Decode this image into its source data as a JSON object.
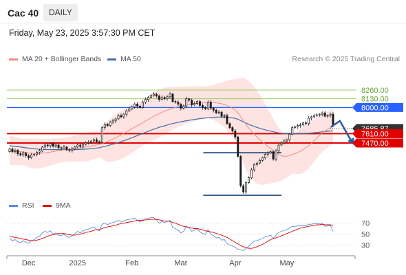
{
  "header": {
    "symbol": "Cac 40",
    "timeframe": "DAILY"
  },
  "datetime": "Friday, May 23, 2025 3:57:30 PM CET",
  "legend": [
    {
      "label": "MA 20 + Bollinger Bands",
      "color": "#f28b82"
    },
    {
      "label": "MA 50",
      "color": "#3d6fa8"
    }
  ],
  "credit": "Research © 2025 Trading Central",
  "rsi_legend": [
    {
      "label": "RSI",
      "color": "#5b8fd6"
    },
    {
      "label": "9MA",
      "color": "#e00000"
    }
  ],
  "colors": {
    "band_fill": "#fde3e1",
    "ma20": "#f28b82",
    "ma50": "#3d6fa8",
    "candle": "#1a1a1a",
    "resistance_green": "#9ccc65",
    "pivot_blue": "#2962ff",
    "support_red": "#e00000",
    "arrow": "#2e5ea8",
    "rsi_line": "#5b8fd6",
    "rsi_ma": "#e00000"
  },
  "chart_data": [
    {
      "type": "candlestick",
      "ylim": [
        6660,
        8630
      ],
      "x_labels": [
        {
          "label": "Dec",
          "index": 7
        },
        {
          "label": "2025",
          "index": 25
        },
        {
          "label": "Feb",
          "index": 45
        },
        {
          "label": "Mar",
          "index": 63
        },
        {
          "label": "Apr",
          "index": 83
        },
        {
          "label": "May",
          "index": 102
        }
      ],
      "close": [
        7380,
        7340,
        7360,
        7310,
        7290,
        7320,
        7280,
        7250,
        7290,
        7300,
        7330,
        7350,
        7410,
        7440,
        7430,
        7460,
        7420,
        7440,
        7400,
        7390,
        7410,
        7370,
        7360,
        7380,
        7410,
        7440,
        7420,
        7450,
        7470,
        7480,
        7500,
        7520,
        7490,
        7480,
        7700,
        7750,
        7730,
        7780,
        7800,
        7830,
        7880,
        7860,
        7900,
        7950,
        7980,
        8010,
        8050,
        8020,
        8000,
        8080,
        8120,
        8150,
        8180,
        8200,
        8170,
        8120,
        8150,
        8130,
        8160,
        8200,
        8090,
        8080,
        8050,
        7990,
        8020,
        8130,
        8110,
        8040,
        8060,
        8090,
        8030,
        8000,
        7980,
        8080,
        7990,
        7960,
        7920,
        7930,
        7870,
        7880,
        7760,
        7700,
        7650,
        7560,
        7270,
        6830,
        6740,
        6880,
        6950,
        7070,
        7150,
        7170,
        7210,
        7250,
        7300,
        7320,
        7340,
        7230,
        7350,
        7440,
        7470,
        7500,
        7520,
        7600,
        7700,
        7710,
        7730,
        7740,
        7770,
        7760,
        7840,
        7860,
        7880,
        7890,
        7900,
        7920,
        7870,
        7880,
        7900,
        7740
      ],
      "open": [
        7340,
        7380,
        7340,
        7360,
        7310,
        7290,
        7320,
        7280,
        7250,
        7290,
        7300,
        7330,
        7350,
        7410,
        7440,
        7430,
        7460,
        7420,
        7440,
        7400,
        7390,
        7410,
        7370,
        7360,
        7380,
        7410,
        7440,
        7420,
        7450,
        7470,
        7480,
        7500,
        7520,
        7490,
        7480,
        7700,
        7750,
        7730,
        7780,
        7800,
        7830,
        7880,
        7860,
        7900,
        7950,
        7980,
        8010,
        8050,
        8020,
        8000,
        8080,
        8120,
        8150,
        8180,
        8200,
        8170,
        8120,
        8150,
        8130,
        8160,
        8200,
        8090,
        8080,
        8050,
        7990,
        8020,
        8130,
        8110,
        8040,
        8060,
        8090,
        8030,
        8000,
        7980,
        8080,
        7990,
        7960,
        7920,
        7930,
        7870,
        7880,
        7760,
        7700,
        7650,
        7560,
        7270,
        6830,
        6740,
        6880,
        6950,
        7070,
        7150,
        7170,
        7210,
        7250,
        7300,
        7320,
        7340,
        7230,
        7350,
        7440,
        7470,
        7500,
        7520,
        7600,
        7700,
        7710,
        7730,
        7740,
        7770,
        7760,
        7840,
        7860,
        7880,
        7890,
        7900,
        7920,
        7870,
        7880,
        7900
      ],
      "ma20": [
        7360,
        7357,
        7352,
        7347,
        7341,
        7335,
        7330,
        7324,
        7317,
        7313,
        7311,
        7312,
        7316,
        7322,
        7328,
        7335,
        7342,
        7350,
        7356,
        7362,
        7368,
        7373,
        7377,
        7382,
        7387,
        7392,
        7397,
        7403,
        7410,
        7418,
        7426,
        7435,
        7442,
        7447,
        7463,
        7479,
        7494,
        7511,
        7529,
        7548,
        7570,
        7590,
        7613,
        7637,
        7660,
        7684,
        7707,
        7729,
        7749,
        7773,
        7799,
        7822,
        7846,
        7869,
        7889,
        7909,
        7928,
        7943,
        7960,
        7976,
        7988,
        8000,
        8011,
        8018,
        8025,
        8035,
        8043,
        8050,
        8056,
        8062,
        8067,
        8070,
        8072,
        8079,
        8078,
        8075,
        8069,
        8064,
        8055,
        8046,
        8028,
        8010,
        7988,
        7961,
        7921,
        7864,
        7804,
        7746,
        7690,
        7642,
        7597,
        7557,
        7521,
        7484,
        7454,
        7420,
        7389,
        7355,
        7321,
        7294,
        7279,
        7273,
        7273,
        7283,
        7298,
        7312,
        7328,
        7346,
        7370,
        7402,
        7429,
        7463,
        7506,
        7542,
        7583,
        7621,
        7647,
        7672,
        7700,
        7716
      ],
      "ma50": [
        7430,
        7425,
        7420,
        7415,
        7410,
        7404,
        7398,
        7393,
        7388,
        7384,
        7380,
        7377,
        7375,
        7374,
        7373,
        7372,
        7372,
        7371,
        7371,
        7370,
        7370,
        7370,
        7370,
        7371,
        7372,
        7373,
        7375,
        7377,
        7379,
        7382,
        7386,
        7390,
        7395,
        7400,
        7410,
        7420,
        7430,
        7441,
        7452,
        7464,
        7477,
        7490,
        7504,
        7518,
        7533,
        7549,
        7565,
        7581,
        7597,
        7613,
        7629,
        7645,
        7661,
        7676,
        7690,
        7704,
        7716,
        7728,
        7739,
        7750,
        7760,
        7770,
        7779,
        7787,
        7794,
        7802,
        7809,
        7816,
        7822,
        7828,
        7834,
        7839,
        7843,
        7848,
        7851,
        7854,
        7856,
        7857,
        7857,
        7856,
        7853,
        7849,
        7844,
        7837,
        7825,
        7806,
        7785,
        7766,
        7748,
        7732,
        7717,
        7703,
        7690,
        7678,
        7667,
        7656,
        7647,
        7637,
        7628,
        7621,
        7616,
        7612,
        7609,
        7607,
        7607,
        7607,
        7607,
        7608,
        7610,
        7612,
        7615,
        7619,
        7623,
        7627,
        7632,
        7637,
        7641,
        7645,
        7649,
        7651
      ],
      "band_width": [
        220,
        215,
        210,
        205,
        200,
        200,
        205,
        215,
        220,
        225,
        225,
        220,
        215,
        210,
        205,
        200,
        195,
        190,
        185,
        180,
        180,
        180,
        185,
        190,
        195,
        200,
        205,
        210,
        215,
        215,
        210,
        205,
        200,
        195,
        230,
        270,
        300,
        320,
        335,
        345,
        355,
        360,
        365,
        365,
        365,
        360,
        355,
        350,
        345,
        340,
        340,
        345,
        350,
        355,
        360,
        360,
        355,
        350,
        340,
        330,
        320,
        310,
        300,
        290,
        280,
        275,
        270,
        265,
        260,
        255,
        250,
        245,
        240,
        240,
        250,
        260,
        280,
        300,
        320,
        340,
        370,
        400,
        430,
        460,
        510,
        580,
        640,
        680,
        700,
        710,
        705,
        690,
        670,
        640,
        600,
        560,
        520,
        480,
        440,
        400,
        370,
        340,
        320,
        300,
        290,
        300,
        320,
        340,
        350,
        350,
        340,
        330,
        310,
        300,
        290,
        280,
        275,
        270,
        265,
        270
      ],
      "levels": [
        {
          "value": 8260,
          "label": "8260.00"
        },
        {
          "value": 8130,
          "label": "8130.00"
        },
        {
          "value": 8000,
          "label": "8000.00"
        },
        {
          "value": 7685.87,
          "label": "7685.87"
        },
        {
          "value": 7610,
          "label": "7610.00"
        },
        {
          "value": 7470,
          "label": "7470.00"
        }
      ],
      "pattern_lines": [
        {
          "value": 7325,
          "from_index": 72,
          "to_index": 99
        },
        {
          "value": 6690,
          "from_index": 72,
          "to_index": 99
        }
      ]
    },
    {
      "type": "line",
      "ylim": [
        18,
        82
      ],
      "y_ticks": [
        30,
        50,
        70
      ],
      "series": [
        {
          "name": "RSI",
          "values": [
            42,
            38,
            40,
            36,
            34,
            38,
            35,
            33,
            38,
            40,
            44,
            46,
            52,
            55,
            53,
            56,
            50,
            52,
            48,
            47,
            50,
            45,
            44,
            47,
            51,
            55,
            52,
            56,
            58,
            59,
            61,
            63,
            58,
            56,
            68,
            70,
            67,
            70,
            71,
            73,
            75,
            72,
            74,
            76,
            77,
            78,
            79,
            75,
            72,
            77,
            78,
            79,
            80,
            80,
            76,
            70,
            73,
            71,
            73,
            75,
            62,
            60,
            57,
            52,
            55,
            64,
            62,
            55,
            57,
            60,
            54,
            51,
            49,
            58,
            50,
            47,
            43,
            44,
            39,
            40,
            33,
            30,
            28,
            26,
            22,
            21,
            20,
            24,
            27,
            33,
            37,
            38,
            40,
            42,
            45,
            46,
            48,
            42,
            48,
            53,
            55,
            57,
            58,
            61,
            64,
            64,
            65,
            65,
            66,
            65,
            68,
            68,
            69,
            69,
            69,
            70,
            64,
            65,
            66,
            55
          ]
        },
        {
          "name": "9MA",
          "values": [
            46,
            45,
            44,
            43,
            42,
            41,
            40,
            39,
            38,
            38,
            39,
            40,
            42,
            44,
            46,
            48,
            49,
            50,
            51,
            51,
            51,
            50,
            49,
            48,
            48,
            49,
            50,
            51,
            53,
            54,
            55,
            57,
            58,
            58,
            60,
            62,
            63,
            64,
            65,
            66,
            68,
            69,
            70,
            71,
            72,
            73,
            74,
            75,
            75,
            75,
            76,
            76,
            77,
            77,
            77,
            76,
            75,
            74,
            74,
            73,
            71,
            70,
            68,
            66,
            64,
            63,
            62,
            61,
            60,
            60,
            59,
            58,
            56,
            55,
            54,
            53,
            51,
            50,
            48,
            46,
            44,
            41,
            38,
            35,
            32,
            29,
            27,
            25,
            24,
            24,
            25,
            27,
            29,
            31,
            34,
            37,
            40,
            42,
            43,
            45,
            47,
            49,
            51,
            53,
            55,
            57,
            59,
            61,
            62,
            63,
            64,
            65,
            66,
            67,
            67,
            68,
            67,
            67,
            67,
            66
          ]
        }
      ]
    }
  ]
}
